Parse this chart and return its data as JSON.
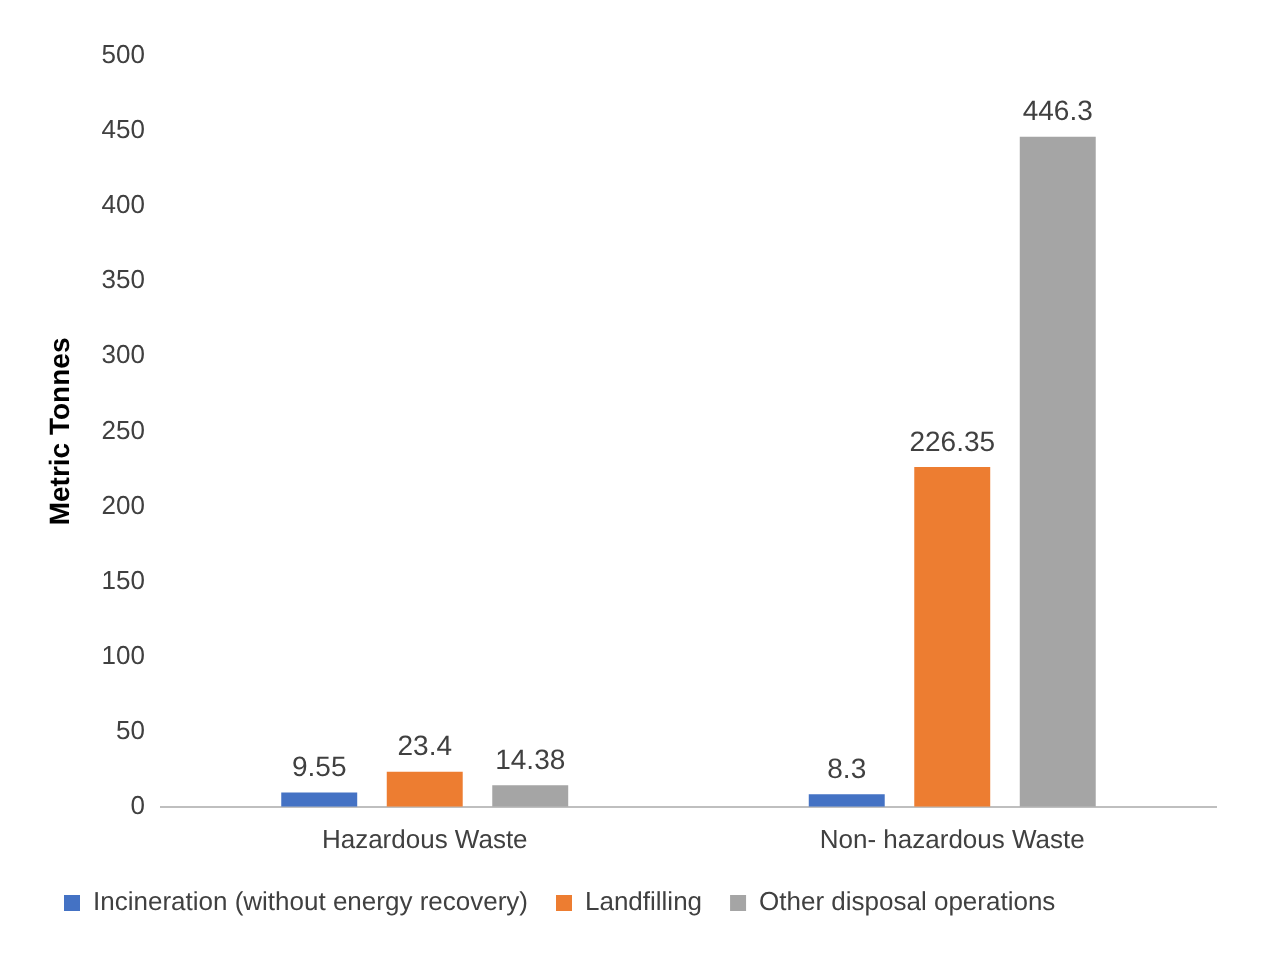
{
  "chart_data": {
    "type": "bar",
    "ylabel": "Metric Tonnes",
    "categories": [
      "Hazardous Waste",
      "Non- hazardous Waste"
    ],
    "series": [
      {
        "name": "Incineration (without energy recovery)",
        "color": "#4472c4",
        "values": [
          9.55,
          8.3
        ]
      },
      {
        "name": "Landfilling",
        "color": "#ed7d31",
        "values": [
          23.4,
          226.35
        ]
      },
      {
        "name": "Other disposal operations",
        "color": "#a5a5a5",
        "values": [
          14.38,
          446.3
        ]
      }
    ],
    "ylim": [
      0,
      500
    ],
    "yticks": [
      0,
      50,
      100,
      150,
      200,
      250,
      300,
      350,
      400,
      450,
      500
    ],
    "grid": false,
    "legend": "bottom",
    "data_labels": true
  }
}
